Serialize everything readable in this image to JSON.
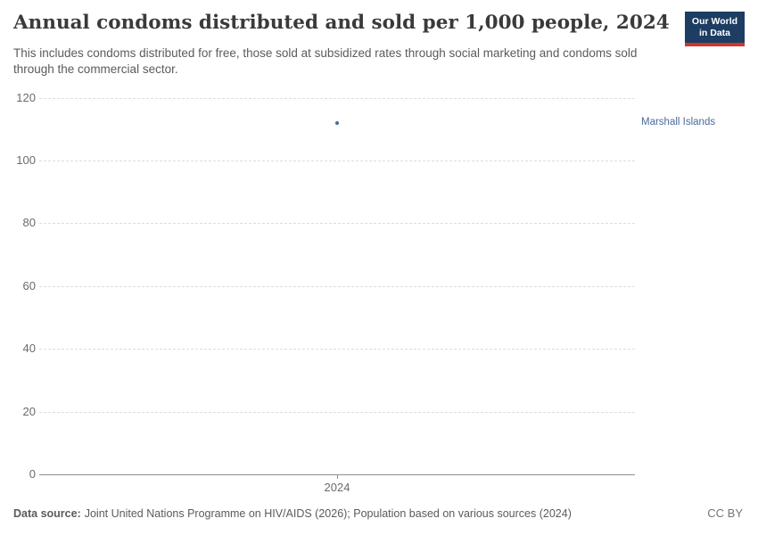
{
  "header": {
    "title": "Annual condoms distributed and sold per 1,000 people, 2024",
    "subtitle": "This includes condoms distributed for free, those sold at subsidized rates through social marketing and condoms sold through the commercial sector."
  },
  "logo": {
    "line1": "Our World",
    "line2": "in Data",
    "bg_color": "#1d3d63",
    "accent_color": "#d0352c"
  },
  "chart_data": {
    "type": "scatter",
    "title": "Annual condoms distributed and sold per 1,000 people, 2024",
    "x": [
      2024
    ],
    "x_tick_labels": [
      "2024"
    ],
    "series": [
      {
        "name": "Marshall Islands",
        "x": [
          2024
        ],
        "values": [
          112
        ],
        "color": "#4C6A9C"
      }
    ],
    "y_ticks": [
      0,
      20,
      40,
      60,
      80,
      100,
      120
    ],
    "ylim": [
      0,
      120
    ],
    "xlabel": "",
    "ylabel": "",
    "grid": "horizontal-dashed",
    "legend": "entity-label-right",
    "axis_color": "#8f8f8f",
    "gridline_color": "#dddddd",
    "tick_color": "#6b6b6b"
  },
  "footer": {
    "source_label": "Data source:",
    "source_text": "Joint United Nations Programme on HIV/AIDS (2026); Population based on various sources (2024)",
    "license": "CC BY"
  }
}
